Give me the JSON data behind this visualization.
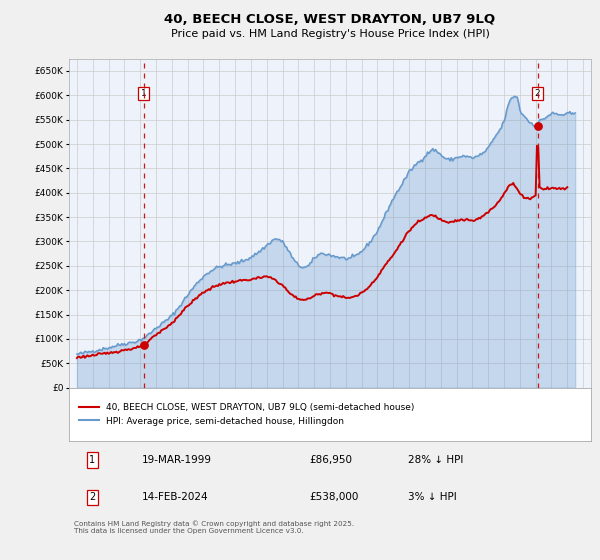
{
  "title": "40, BEECH CLOSE, WEST DRAYTON, UB7 9LQ",
  "subtitle": "Price paid vs. HM Land Registry's House Price Index (HPI)",
  "bg_color": "#f0f0f0",
  "plot_bg_color": "#eef2fa",
  "red_color": "#cc0000",
  "blue_color": "#6699cc",
  "vline_color": "#cc0000",
  "grid_color": "#cccccc",
  "ylim_min": 0,
  "ylim_max": 675000,
  "ytick_step": 50000,
  "xmin": 1994.5,
  "xmax": 2027.5,
  "sale1_year": 1999.21,
  "sale1_price": 86950,
  "sale2_year": 2024.12,
  "sale2_price": 538000,
  "legend_line1": "40, BEECH CLOSE, WEST DRAYTON, UB7 9LQ (semi-detached house)",
  "legend_line2": "HPI: Average price, semi-detached house, Hillingdon",
  "table_row1_date": "19-MAR-1999",
  "table_row1_price": "£86,950",
  "table_row1_hpi": "28% ↓ HPI",
  "table_row2_date": "14-FEB-2024",
  "table_row2_price": "£538,000",
  "table_row2_hpi": "3% ↓ HPI",
  "footer": "Contains HM Land Registry data © Crown copyright and database right 2025.\nThis data is licensed under the Open Government Licence v3.0."
}
